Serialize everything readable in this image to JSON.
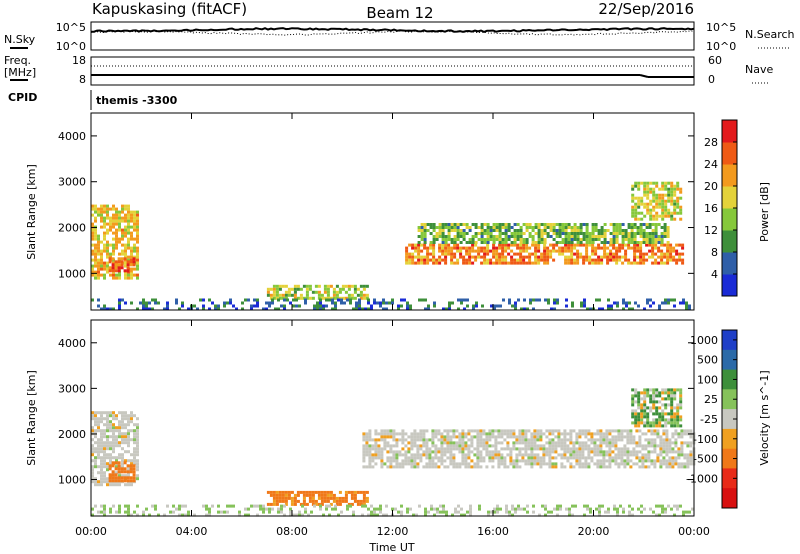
{
  "header": {
    "station": "Kapuskasing (fitACF)",
    "beam": "Beam 12",
    "date": "22/Sep/2016"
  },
  "status_panels": {
    "nsky": {
      "label": "N.Sky",
      "ticks": [
        "10^5",
        "10^0"
      ]
    },
    "nsearch": {
      "label": "N.Search",
      "ticks": [
        "10^5",
        "10^0"
      ]
    },
    "freq": {
      "label_line1": "Freq.",
      "label_line2": "[MHz]",
      "ticks": [
        "18",
        "8"
      ]
    },
    "nave": {
      "label": "Nave",
      "ticks": [
        "60",
        "0"
      ]
    },
    "cpid": {
      "label": "CPID",
      "value": "themis -3300"
    }
  },
  "colors": {
    "white_plot_bg": "#ffffff",
    "power": [
      "#1a2bd6",
      "#2f5fa8",
      "#3e8f3a",
      "#86c83a",
      "#e4d23a",
      "#f39a1e",
      "#ef5a15",
      "#e31a1c"
    ],
    "velocity": [
      "#1f3fc8",
      "#2b6aa8",
      "#3d8f3a",
      "#86c25a",
      "#c8c8c0",
      "#f0a020",
      "#f07818",
      "#e82a18",
      "#d81010"
    ]
  },
  "chart_data": [
    {
      "type": "heatmap",
      "name": "power",
      "title": "",
      "xlabel": "Time UT",
      "ylabel": "Slant Range [km]",
      "xlim_hours": [
        0,
        24
      ],
      "ylim_km": [
        200,
        4500
      ],
      "x_ticks": [
        "00:00",
        "04:00",
        "08:00",
        "12:00",
        "16:00",
        "20:00",
        "00:00"
      ],
      "y_ticks": [
        "1000",
        "2000",
        "3000",
        "4000"
      ],
      "colorbar": {
        "label": "Power [dB]",
        "ticks": [
          "4",
          "8",
          "12",
          "16",
          "20",
          "24",
          "28"
        ],
        "range": [
          0,
          30
        ]
      },
      "regions": [
        {
          "t0": 0.0,
          "t1": 1.8,
          "r0": 900,
          "r1": 2500,
          "level": 18
        },
        {
          "t0": 0.7,
          "t1": 1.7,
          "r0": 1050,
          "r1": 1350,
          "level": 24
        },
        {
          "t0": 12.5,
          "t1": 23.5,
          "r0": 1250,
          "r1": 1650,
          "level": 22
        },
        {
          "t0": 13.0,
          "t1": 23.0,
          "r0": 1650,
          "r1": 2100,
          "level": 12
        },
        {
          "t0": 21.5,
          "t1": 23.5,
          "r0": 2200,
          "r1": 3000,
          "level": 16
        },
        {
          "t0": 7.0,
          "t1": 11.0,
          "r0": 450,
          "r1": 750,
          "level": 15
        },
        {
          "t0": 0.0,
          "t1": 24.0,
          "r0": 250,
          "r1": 450,
          "level": 6
        }
      ]
    },
    {
      "type": "heatmap",
      "name": "velocity",
      "title": "",
      "xlabel": "Time UT",
      "ylabel": "Slant Range [km]",
      "xlim_hours": [
        0,
        24
      ],
      "ylim_km": [
        200,
        4500
      ],
      "x_ticks": [
        "00:00",
        "04:00",
        "08:00",
        "12:00",
        "16:00",
        "20:00",
        "00:00"
      ],
      "y_ticks": [
        "1000",
        "2000",
        "3000",
        "4000"
      ],
      "colorbar": {
        "label": "Velocity [m s^-1]",
        "ticks": [
          "1000",
          "500",
          "100",
          "25",
          "-25",
          "-100",
          "-500",
          "-1000"
        ]
      },
      "regions": [
        {
          "t0": 0.0,
          "t1": 1.8,
          "r0": 900,
          "r1": 2500,
          "level": 0
        },
        {
          "t0": 0.7,
          "t1": 1.7,
          "r0": 1000,
          "r1": 1400,
          "level": -300
        },
        {
          "t0": 10.8,
          "t1": 24.0,
          "r0": 1250,
          "r1": 2100,
          "level": 0
        },
        {
          "t0": 21.5,
          "t1": 23.5,
          "r0": 2200,
          "r1": 3000,
          "level": 80
        },
        {
          "t0": 7.0,
          "t1": 11.0,
          "r0": 450,
          "r1": 750,
          "level": -200
        },
        {
          "t0": 0.0,
          "t1": 24.0,
          "r0": 250,
          "r1": 450,
          "level": 30
        }
      ]
    }
  ]
}
